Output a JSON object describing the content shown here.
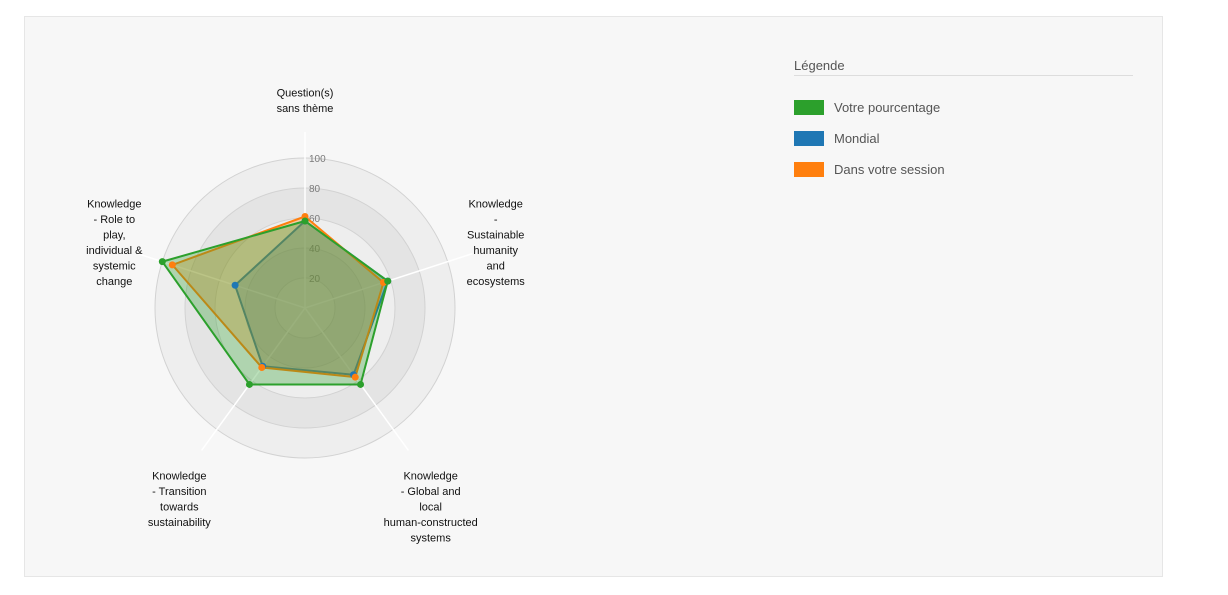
{
  "legend": {
    "title": "Légende",
    "items": [
      {
        "label": "Votre pourcentage",
        "color": "#2ca02c"
      },
      {
        "label": "Mondial",
        "color": "#1f77b4"
      },
      {
        "label": "Dans votre session",
        "color": "#ff7f0e"
      }
    ]
  },
  "chart_data": {
    "type": "radar",
    "axes": [
      [
        "Question(s)",
        "sans thème"
      ],
      [
        "Knowledge",
        "-",
        "Sustainable",
        "humanity",
        "and",
        "ecosystems"
      ],
      [
        "Knowledge",
        "- Global and",
        "local",
        "human-constructed",
        "systems"
      ],
      [
        "Knowledge",
        "- Transition",
        "towards",
        "sustainability"
      ],
      [
        "Knowledge",
        "- Role to",
        "play,",
        "individual &",
        "systemic",
        "change"
      ]
    ],
    "range": [
      0,
      100
    ],
    "ticks": [
      20,
      40,
      60,
      80,
      100
    ],
    "series": [
      {
        "name": "Mondial",
        "color": "#1f77b4",
        "values": [
          58,
          58,
          55,
          48,
          49
        ]
      },
      {
        "name": "Dans votre session",
        "color": "#ff7f0e",
        "values": [
          61,
          55,
          57,
          49,
          93
        ]
      },
      {
        "name": "Votre pourcentage",
        "color": "#2ca02c",
        "values": [
          58,
          58,
          63,
          63,
          100
        ]
      }
    ]
  }
}
